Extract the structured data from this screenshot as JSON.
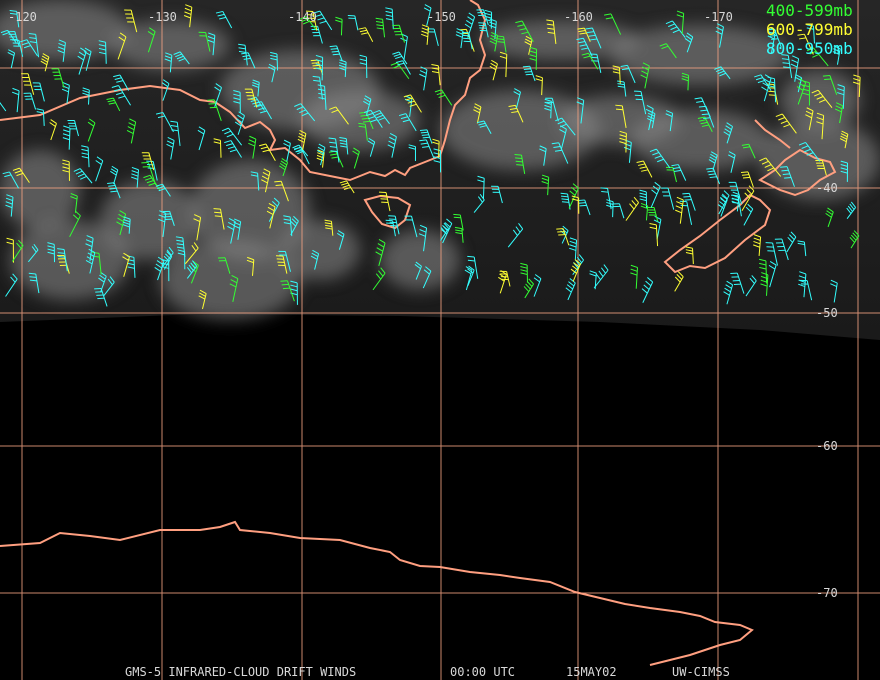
{
  "map": {
    "longitude_labels": [
      "-120",
      "-130",
      "-140",
      "-150",
      "-160",
      "-170"
    ],
    "latitude_labels": [
      "-40",
      "-50",
      "-60",
      "-70"
    ],
    "legend": [
      {
        "label": "400-599mb",
        "color": "#33ff33"
      },
      {
        "label": "600-799mb",
        "color": "#ffff33"
      },
      {
        "label": "800-950mb",
        "color": "#33ffff"
      }
    ],
    "footer": {
      "product": "GMS-5 INFRARED-CLOUD DRIFT WINDS",
      "time": "00:00 UTC",
      "date": "15MAY02",
      "source": "UW-CIMSS"
    },
    "colors": {
      "coastline": "#ff9f80",
      "grid": "#f0a080",
      "background": "#000000"
    },
    "wind_barb_layers": [
      "400-599mb",
      "600-799mb",
      "800-950mb"
    ]
  }
}
